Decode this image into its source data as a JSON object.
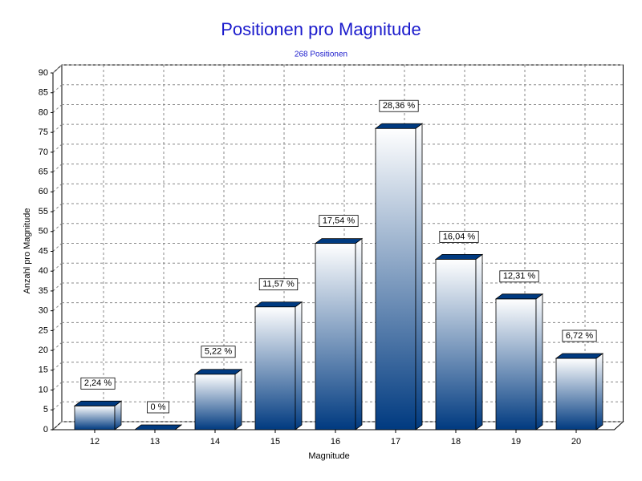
{
  "chart_data": {
    "type": "bar3d",
    "title": "Positionen pro Magnitude",
    "subtitle": "268 Positionen",
    "x_label": "Magnitude",
    "y_label": "Anzahl pro Magnitude",
    "categories": [
      "12",
      "13",
      "14",
      "15",
      "16",
      "17",
      "18",
      "19",
      "20"
    ],
    "values": [
      6,
      0,
      14,
      31,
      47,
      76,
      43,
      33,
      18
    ],
    "value_labels": [
      "2,24 %",
      "0 %",
      "5,22 %",
      "11,57 %",
      "17,54 %",
      "28,36 %",
      "16,04 %",
      "12,31 %",
      "6,72 %"
    ],
    "color": "#003a80",
    "ylim": [
      0,
      90
    ],
    "yticks": [
      0,
      5,
      10,
      15,
      20,
      25,
      30,
      35,
      40,
      45,
      50,
      55,
      60,
      65,
      70,
      75,
      80,
      85,
      90
    ],
    "grid": true
  }
}
